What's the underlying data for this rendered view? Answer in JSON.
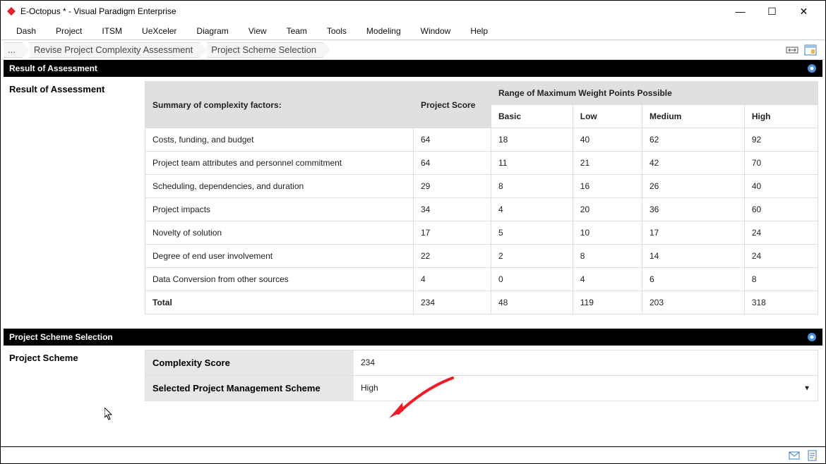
{
  "window": {
    "title": "E-Octopus * - Visual Paradigm Enterprise"
  },
  "menu": {
    "items": [
      "Dash",
      "Project",
      "ITSM",
      "UeXceler",
      "Diagram",
      "View",
      "Team",
      "Tools",
      "Modeling",
      "Window",
      "Help"
    ]
  },
  "breadcrumb": {
    "first": "...",
    "items": [
      "Revise Project Complexity Assessment",
      "Project Scheme Selection"
    ]
  },
  "assessment": {
    "section_title": "Result of Assessment",
    "left_label": "Result of Assessment",
    "table": {
      "header_factor": "Summary of complexity factors:",
      "header_score": "Project Score",
      "header_range": "Range of Maximum Weight Points Possible",
      "range_cols": [
        "Basic",
        "Low",
        "Medium",
        "High"
      ],
      "rows": [
        {
          "factor": "Costs, funding, and budget",
          "score": "64",
          "basic": "18",
          "low": "40",
          "medium": "62",
          "high": "92"
        },
        {
          "factor": "Project team attributes and personnel commitment",
          "score": "64",
          "basic": "11",
          "low": "21",
          "medium": "42",
          "high": "70"
        },
        {
          "factor": "Scheduling, dependencies, and duration",
          "score": "29",
          "basic": "8",
          "low": "16",
          "medium": "26",
          "high": "40"
        },
        {
          "factor": "Project impacts",
          "score": "34",
          "basic": "4",
          "low": "20",
          "medium": "36",
          "high": "60"
        },
        {
          "factor": "Novelty of solution",
          "score": "17",
          "basic": "5",
          "low": "10",
          "medium": "17",
          "high": "24"
        },
        {
          "factor": "Degree of end user involvement",
          "score": "22",
          "basic": "2",
          "low": "8",
          "medium": "14",
          "high": "24"
        },
        {
          "factor": "Data Conversion from other sources",
          "score": "4",
          "basic": "0",
          "low": "4",
          "medium": "6",
          "high": "8"
        }
      ],
      "total_label": "Total",
      "total": {
        "score": "234",
        "basic": "48",
        "low": "119",
        "medium": "203",
        "high": "318"
      }
    }
  },
  "scheme": {
    "section_title": "Project Scheme Selection",
    "left_label": "Project Scheme",
    "complexity_label": "Complexity Score",
    "complexity_value": "234",
    "selected_label": "Selected Project Management Scheme",
    "selected_value": "High"
  },
  "colors": {
    "header_bg": "#000000",
    "header_fg": "#ffffff",
    "table_header_bg": "#e0e0e0",
    "form_label_bg": "#e8e6e6",
    "border": "#dddddd",
    "arrow": "#ee1c25"
  }
}
